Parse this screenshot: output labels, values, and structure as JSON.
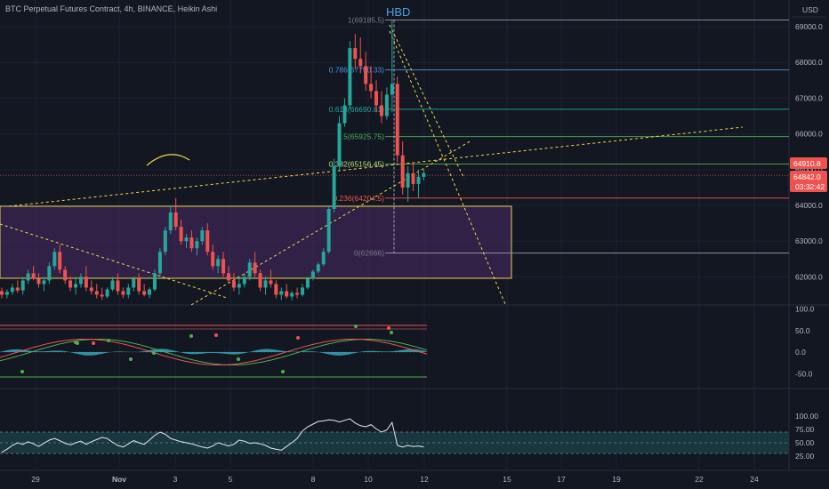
{
  "chart_title": "BTC Perpetual Futures Contract, 4h, BINANCE, Heikin Ashi",
  "currency": "USD",
  "annotation_hbd": "HBD",
  "price_axis": [
    "69000.0",
    "68000.0",
    "67000.0",
    "66000.0",
    "65000.0",
    "64000.0",
    "63000.0",
    "62000.0"
  ],
  "price_tags": {
    "last": "64910.8",
    "current": "64842.0",
    "countdown": "03:32:42"
  },
  "osc_axis": [
    "100.0",
    "50.0",
    "0.0",
    "-50.0"
  ],
  "rsi_axis": [
    "100.00",
    "75.00",
    "50.00",
    "25.00"
  ],
  "x_axis": [
    "29",
    "Nov",
    "3",
    "5",
    "8",
    "10",
    "12",
    "15",
    "17",
    "19",
    "22",
    "24"
  ],
  "fib_levels": [
    {
      "label": "1(69185.5)",
      "price": 69185.5
    },
    {
      "label": "0.786(67790.33)",
      "price": 67790.33
    },
    {
      "label": "0.618(66690.81)",
      "price": 66690.81
    },
    {
      "label": "0.5(65925.75)",
      "price": 65925.75
    },
    {
      "label": "0.382(65156.45)",
      "price": 65156.45
    },
    {
      "label": "0.236(64204.5)",
      "price": 64204.5
    },
    {
      "label": "0(62666)",
      "price": 62666
    }
  ],
  "colors": {
    "background": "#131722",
    "bull": "#26a69a",
    "bear": "#ef5350",
    "trend": "#f0d94a",
    "zone": "#4a2a66",
    "rsi_band": "#1c3b44",
    "rsi_line": "#e8e8e8",
    "osc_fill": "#3fb8cf",
    "hbd": "#4aa3df"
  },
  "chart_data": {
    "type": "candlestick",
    "title": "BTC Perpetual Futures Contract, 4h, BINANCE, Heikin Ashi",
    "x_labels": [
      "29",
      "Nov",
      "3",
      "5",
      "8",
      "10",
      "12",
      "15",
      "17",
      "19",
      "22",
      "24"
    ],
    "y_ticks": [
      62000,
      63000,
      64000,
      65000,
      66000,
      67000,
      68000,
      69000
    ],
    "ylim": [
      61300,
      69500
    ],
    "last_price": 64910.8,
    "current_price": 64842.0,
    "candles": [
      [
        61600,
        61700,
        61400,
        61500
      ],
      [
        61500,
        61650,
        61400,
        61580
      ],
      [
        61580,
        61800,
        61500,
        61700
      ],
      [
        61700,
        61900,
        61550,
        61620
      ],
      [
        61620,
        62000,
        61500,
        61900
      ],
      [
        61900,
        62200,
        61800,
        62100
      ],
      [
        62100,
        62300,
        61900,
        61950
      ],
      [
        61950,
        62100,
        61700,
        61800
      ],
      [
        61800,
        62000,
        61600,
        61900
      ],
      [
        61900,
        62400,
        61800,
        62300
      ],
      [
        62300,
        62800,
        62200,
        62700
      ],
      [
        62700,
        62900,
        62100,
        62200
      ],
      [
        62200,
        62300,
        61800,
        61900
      ],
      [
        61900,
        62000,
        61600,
        61700
      ],
      [
        61700,
        62000,
        61500,
        61800
      ],
      [
        61800,
        62100,
        61700,
        62000
      ],
      [
        62000,
        62300,
        61600,
        61700
      ],
      [
        61700,
        61900,
        61500,
        61600
      ],
      [
        61600,
        61800,
        61400,
        61500
      ],
      [
        61500,
        61700,
        61350,
        61450
      ],
      [
        61450,
        61700,
        61400,
        61650
      ],
      [
        61650,
        62000,
        61600,
        61900
      ],
      [
        61900,
        62100,
        61500,
        61600
      ],
      [
        61600,
        61700,
        61400,
        61500
      ],
      [
        61500,
        61800,
        61400,
        61700
      ],
      [
        61700,
        62000,
        61600,
        61950
      ],
      [
        61950,
        62100,
        61500,
        61600
      ],
      [
        61600,
        61800,
        61450,
        61500
      ],
      [
        61500,
        61700,
        61400,
        61650
      ],
      [
        61650,
        62200,
        61600,
        62100
      ],
      [
        62100,
        62800,
        62000,
        62700
      ],
      [
        62700,
        63400,
        62600,
        63300
      ],
      [
        63300,
        64000,
        63200,
        63800
      ],
      [
        63800,
        64200,
        63300,
        63400
      ],
      [
        63400,
        63600,
        62900,
        63000
      ],
      [
        63000,
        63200,
        62800,
        63100
      ],
      [
        63100,
        63300,
        62700,
        62800
      ],
      [
        62800,
        63100,
        62600,
        63000
      ],
      [
        63000,
        63400,
        62900,
        63300
      ],
      [
        63300,
        63500,
        62600,
        62700
      ],
      [
        62700,
        62900,
        62200,
        62300
      ],
      [
        62300,
        62600,
        62100,
        62500
      ],
      [
        62500,
        62700,
        62000,
        62100
      ],
      [
        62100,
        62300,
        61800,
        61900
      ],
      [
        61900,
        62100,
        61600,
        61700
      ],
      [
        61700,
        62000,
        61500,
        61800
      ],
      [
        61800,
        62100,
        61700,
        62000
      ],
      [
        62000,
        62500,
        61900,
        62400
      ],
      [
        62400,
        62700,
        62000,
        62100
      ],
      [
        62100,
        62200,
        61600,
        61700
      ],
      [
        61700,
        62000,
        61500,
        61900
      ],
      [
        61900,
        62200,
        61700,
        61800
      ],
      [
        61800,
        61900,
        61400,
        61500
      ],
      [
        61500,
        61700,
        61350,
        61600
      ],
      [
        61600,
        61800,
        61400,
        61450
      ],
      [
        61450,
        61600,
        61350,
        61550
      ],
      [
        61550,
        61700,
        61400,
        61500
      ],
      [
        61500,
        61800,
        61450,
        61700
      ],
      [
        61700,
        62000,
        61650,
        61950
      ],
      [
        61950,
        62200,
        61900,
        62150
      ],
      [
        62150,
        62400,
        62100,
        62350
      ],
      [
        62350,
        62800,
        62300,
        62700
      ],
      [
        62700,
        64000,
        62650,
        63900
      ],
      [
        63900,
        65300,
        63800,
        65100
      ],
      [
        65100,
        66500,
        65000,
        66300
      ],
      [
        66300,
        67000,
        66200,
        66800
      ],
      [
        66800,
        68600,
        66700,
        68400
      ],
      [
        68400,
        68800,
        67800,
        68100
      ],
      [
        68100,
        68700,
        67700,
        67900
      ],
      [
        67900,
        68300,
        67200,
        67400
      ],
      [
        67400,
        67900,
        67000,
        67200
      ],
      [
        67200,
        67500,
        66600,
        66800
      ],
      [
        66800,
        67200,
        66300,
        66500
      ],
      [
        66500,
        67300,
        66400,
        67100
      ],
      [
        67100,
        69185,
        66600,
        67400
      ],
      [
        67400,
        67600,
        65200,
        65400
      ],
      [
        65400,
        65800,
        64300,
        64500
      ],
      [
        64500,
        65100,
        64100,
        64900
      ],
      [
        64900,
        65200,
        64400,
        64600
      ],
      [
        64600,
        65000,
        64200,
        64800
      ],
      [
        64800,
        65000,
        64700,
        64900
      ]
    ],
    "oscillator": {
      "ylim": [
        -60,
        110
      ],
      "ticks": [
        100,
        50,
        0,
        -50
      ]
    },
    "rsi": {
      "ylim": [
        20,
        105
      ],
      "ticks": [
        100,
        75,
        50,
        25
      ],
      "band": [
        30,
        70
      ],
      "values": [
        32,
        38,
        45,
        50,
        47,
        52,
        48,
        43,
        49,
        55,
        58,
        54,
        49,
        46,
        50,
        53,
        47,
        52,
        56,
        60,
        58,
        51,
        45,
        42,
        48,
        54,
        50,
        47,
        55,
        64,
        70,
        66,
        58,
        55,
        52,
        50,
        48,
        45,
        42,
        40,
        44,
        50,
        47,
        44,
        47,
        55,
        53,
        49,
        50,
        48,
        45,
        40,
        38,
        36,
        43,
        50,
        58,
        72,
        80,
        85,
        90,
        91,
        93,
        92,
        89,
        92,
        95,
        87,
        82,
        80,
        84,
        76,
        70,
        74,
        88,
        45,
        42,
        45,
        43,
        44,
        42
      ]
    }
  }
}
